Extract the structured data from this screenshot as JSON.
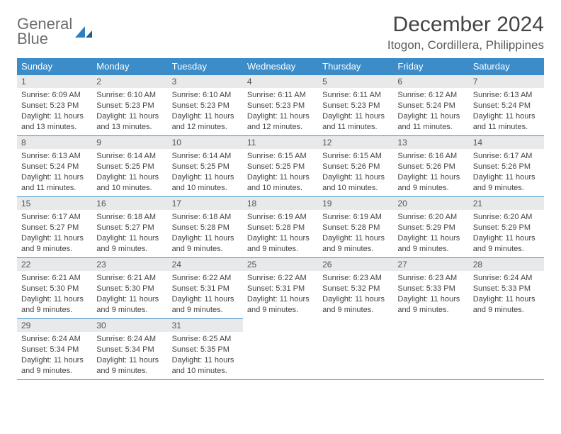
{
  "brand": {
    "text1": "General",
    "text2": "Blue"
  },
  "title": {
    "month": "December 2024",
    "location": "Itogon, Cordillera, Philippines"
  },
  "colors": {
    "header_bg": "#3b8cc9",
    "header_fg": "#ffffff",
    "daynum_bg": "#e7e9eb",
    "rule": "#3b8cc9",
    "text": "#444444"
  },
  "day_headers": [
    "Sunday",
    "Monday",
    "Tuesday",
    "Wednesday",
    "Thursday",
    "Friday",
    "Saturday"
  ],
  "weeks": [
    [
      {
        "n": "1",
        "sr": "Sunrise: 6:09 AM",
        "ss": "Sunset: 5:23 PM",
        "d1": "Daylight: 11 hours",
        "d2": "and 13 minutes."
      },
      {
        "n": "2",
        "sr": "Sunrise: 6:10 AM",
        "ss": "Sunset: 5:23 PM",
        "d1": "Daylight: 11 hours",
        "d2": "and 13 minutes."
      },
      {
        "n": "3",
        "sr": "Sunrise: 6:10 AM",
        "ss": "Sunset: 5:23 PM",
        "d1": "Daylight: 11 hours",
        "d2": "and 12 minutes."
      },
      {
        "n": "4",
        "sr": "Sunrise: 6:11 AM",
        "ss": "Sunset: 5:23 PM",
        "d1": "Daylight: 11 hours",
        "d2": "and 12 minutes."
      },
      {
        "n": "5",
        "sr": "Sunrise: 6:11 AM",
        "ss": "Sunset: 5:23 PM",
        "d1": "Daylight: 11 hours",
        "d2": "and 11 minutes."
      },
      {
        "n": "6",
        "sr": "Sunrise: 6:12 AM",
        "ss": "Sunset: 5:24 PM",
        "d1": "Daylight: 11 hours",
        "d2": "and 11 minutes."
      },
      {
        "n": "7",
        "sr": "Sunrise: 6:13 AM",
        "ss": "Sunset: 5:24 PM",
        "d1": "Daylight: 11 hours",
        "d2": "and 11 minutes."
      }
    ],
    [
      {
        "n": "8",
        "sr": "Sunrise: 6:13 AM",
        "ss": "Sunset: 5:24 PM",
        "d1": "Daylight: 11 hours",
        "d2": "and 11 minutes."
      },
      {
        "n": "9",
        "sr": "Sunrise: 6:14 AM",
        "ss": "Sunset: 5:25 PM",
        "d1": "Daylight: 11 hours",
        "d2": "and 10 minutes."
      },
      {
        "n": "10",
        "sr": "Sunrise: 6:14 AM",
        "ss": "Sunset: 5:25 PM",
        "d1": "Daylight: 11 hours",
        "d2": "and 10 minutes."
      },
      {
        "n": "11",
        "sr": "Sunrise: 6:15 AM",
        "ss": "Sunset: 5:25 PM",
        "d1": "Daylight: 11 hours",
        "d2": "and 10 minutes."
      },
      {
        "n": "12",
        "sr": "Sunrise: 6:15 AM",
        "ss": "Sunset: 5:26 PM",
        "d1": "Daylight: 11 hours",
        "d2": "and 10 minutes."
      },
      {
        "n": "13",
        "sr": "Sunrise: 6:16 AM",
        "ss": "Sunset: 5:26 PM",
        "d1": "Daylight: 11 hours",
        "d2": "and 9 minutes."
      },
      {
        "n": "14",
        "sr": "Sunrise: 6:17 AM",
        "ss": "Sunset: 5:26 PM",
        "d1": "Daylight: 11 hours",
        "d2": "and 9 minutes."
      }
    ],
    [
      {
        "n": "15",
        "sr": "Sunrise: 6:17 AM",
        "ss": "Sunset: 5:27 PM",
        "d1": "Daylight: 11 hours",
        "d2": "and 9 minutes."
      },
      {
        "n": "16",
        "sr": "Sunrise: 6:18 AM",
        "ss": "Sunset: 5:27 PM",
        "d1": "Daylight: 11 hours",
        "d2": "and 9 minutes."
      },
      {
        "n": "17",
        "sr": "Sunrise: 6:18 AM",
        "ss": "Sunset: 5:28 PM",
        "d1": "Daylight: 11 hours",
        "d2": "and 9 minutes."
      },
      {
        "n": "18",
        "sr": "Sunrise: 6:19 AM",
        "ss": "Sunset: 5:28 PM",
        "d1": "Daylight: 11 hours",
        "d2": "and 9 minutes."
      },
      {
        "n": "19",
        "sr": "Sunrise: 6:19 AM",
        "ss": "Sunset: 5:28 PM",
        "d1": "Daylight: 11 hours",
        "d2": "and 9 minutes."
      },
      {
        "n": "20",
        "sr": "Sunrise: 6:20 AM",
        "ss": "Sunset: 5:29 PM",
        "d1": "Daylight: 11 hours",
        "d2": "and 9 minutes."
      },
      {
        "n": "21",
        "sr": "Sunrise: 6:20 AM",
        "ss": "Sunset: 5:29 PM",
        "d1": "Daylight: 11 hours",
        "d2": "and 9 minutes."
      }
    ],
    [
      {
        "n": "22",
        "sr": "Sunrise: 6:21 AM",
        "ss": "Sunset: 5:30 PM",
        "d1": "Daylight: 11 hours",
        "d2": "and 9 minutes."
      },
      {
        "n": "23",
        "sr": "Sunrise: 6:21 AM",
        "ss": "Sunset: 5:30 PM",
        "d1": "Daylight: 11 hours",
        "d2": "and 9 minutes."
      },
      {
        "n": "24",
        "sr": "Sunrise: 6:22 AM",
        "ss": "Sunset: 5:31 PM",
        "d1": "Daylight: 11 hours",
        "d2": "and 9 minutes."
      },
      {
        "n": "25",
        "sr": "Sunrise: 6:22 AM",
        "ss": "Sunset: 5:31 PM",
        "d1": "Daylight: 11 hours",
        "d2": "and 9 minutes."
      },
      {
        "n": "26",
        "sr": "Sunrise: 6:23 AM",
        "ss": "Sunset: 5:32 PM",
        "d1": "Daylight: 11 hours",
        "d2": "and 9 minutes."
      },
      {
        "n": "27",
        "sr": "Sunrise: 6:23 AM",
        "ss": "Sunset: 5:33 PM",
        "d1": "Daylight: 11 hours",
        "d2": "and 9 minutes."
      },
      {
        "n": "28",
        "sr": "Sunrise: 6:24 AM",
        "ss": "Sunset: 5:33 PM",
        "d1": "Daylight: 11 hours",
        "d2": "and 9 minutes."
      }
    ],
    [
      {
        "n": "29",
        "sr": "Sunrise: 6:24 AM",
        "ss": "Sunset: 5:34 PM",
        "d1": "Daylight: 11 hours",
        "d2": "and 9 minutes."
      },
      {
        "n": "30",
        "sr": "Sunrise: 6:24 AM",
        "ss": "Sunset: 5:34 PM",
        "d1": "Daylight: 11 hours",
        "d2": "and 9 minutes."
      },
      {
        "n": "31",
        "sr": "Sunrise: 6:25 AM",
        "ss": "Sunset: 5:35 PM",
        "d1": "Daylight: 11 hours",
        "d2": "and 10 minutes."
      },
      null,
      null,
      null,
      null
    ]
  ]
}
